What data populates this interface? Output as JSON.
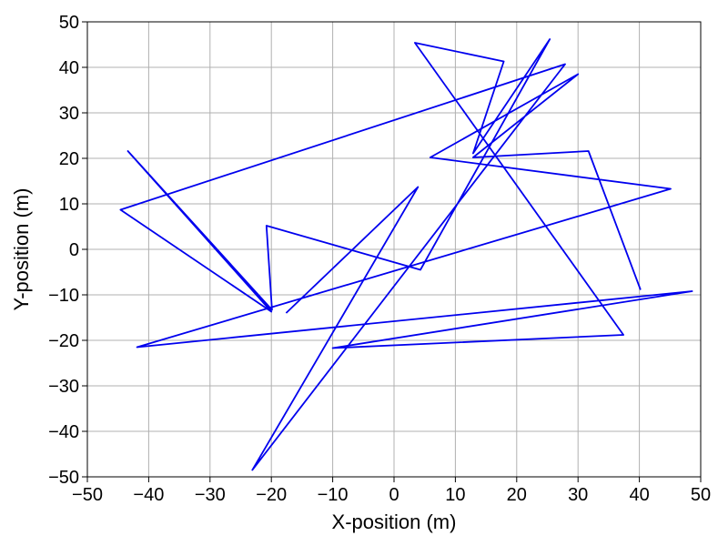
{
  "chart_data": {
    "type": "line",
    "title": "",
    "xlabel": "X-position (m)",
    "ylabel": "Y-position (m)",
    "xlim": [
      -50,
      50
    ],
    "ylim": [
      -50,
      50
    ],
    "xticks": [
      -50,
      -40,
      -30,
      -20,
      -10,
      0,
      10,
      20,
      30,
      40,
      50
    ],
    "yticks": [
      -50,
      -40,
      -30,
      -20,
      -10,
      0,
      10,
      20,
      30,
      40,
      50
    ],
    "xtick_labels": [
      "−50",
      "−40",
      "−30",
      "−20",
      "−10",
      "0",
      "10",
      "20",
      "30",
      "40",
      "50"
    ],
    "ytick_labels": [
      "−50",
      "−40",
      "−30",
      "−20",
      "−10",
      "0",
      "10",
      "20",
      "30",
      "40",
      "50"
    ],
    "grid": true,
    "series": [
      {
        "color": "#0000ee",
        "x": [
          -17.6,
          3.9,
          -23.1,
          27.9,
          -44.6,
          -20.0,
          -43.4,
          -19.9,
          -20.8,
          4.3,
          25.4,
          12.9,
          17.9,
          3.4,
          37.4,
          -10.0,
          48.6,
          -41.9,
          45.1,
          5.9,
          30.0,
          12.9,
          31.7,
          40.2
        ],
        "y": [
          -14.0,
          13.7,
          -48.5,
          40.7,
          8.7,
          -13.7,
          21.6,
          -13.3,
          5.2,
          -4.5,
          46.2,
          21.1,
          41.3,
          45.4,
          -18.8,
          -21.7,
          -9.2,
          -21.5,
          13.3,
          20.2,
          38.5,
          20.2,
          21.6,
          -8.9
        ]
      }
    ]
  }
}
